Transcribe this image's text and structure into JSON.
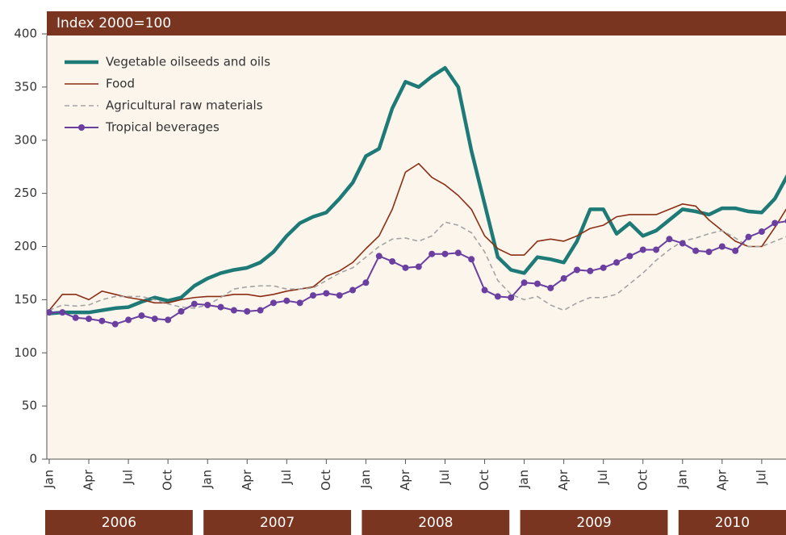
{
  "chart_data": {
    "type": "line",
    "subtitle": "Index 2000=100",
    "categories": [
      "Jan",
      null,
      null,
      "Apr",
      null,
      null,
      "Jul",
      null,
      null,
      "Oct",
      null,
      null,
      "Jan",
      null,
      null,
      "Apr",
      null,
      null,
      "Jul",
      null,
      null,
      "Oct",
      null,
      null,
      "Jan",
      null,
      null,
      "Apr",
      null,
      null,
      "Jul",
      null,
      null,
      "Oct",
      null,
      null,
      "Jan",
      null,
      null,
      "Apr",
      null,
      null,
      "Jul",
      null,
      null,
      "Oct",
      null,
      null,
      "Jan",
      null,
      null,
      "Apr",
      null,
      null,
      "Jul",
      null,
      null
    ],
    "years": [
      "2006",
      "2007",
      "2008",
      "2009",
      "2010"
    ],
    "series": [
      {
        "name": "Vegetable oilseeds and oils",
        "color": "#1d7a77",
        "style": "thick",
        "values": [
          137,
          138,
          138,
          138,
          140,
          142,
          143,
          148,
          152,
          149,
          152,
          163,
          170,
          175,
          178,
          180,
          185,
          195,
          210,
          222,
          228,
          232,
          245,
          260,
          285,
          292,
          330,
          355,
          350,
          360,
          368,
          350,
          290,
          240,
          190,
          178,
          175,
          190,
          188,
          185,
          205,
          235,
          235,
          212,
          222,
          210,
          215,
          225,
          235,
          233,
          230,
          236,
          236,
          233,
          232,
          245,
          268
        ]
      },
      {
        "name": "Food",
        "color": "#8b2e14",
        "style": "solid",
        "values": [
          140,
          155,
          155,
          150,
          158,
          155,
          152,
          150,
          147,
          147,
          150,
          152,
          153,
          153,
          155,
          155,
          153,
          155,
          158,
          160,
          162,
          172,
          177,
          185,
          198,
          210,
          235,
          270,
          278,
          265,
          258,
          248,
          235,
          210,
          198,
          192,
          192,
          205,
          207,
          205,
          210,
          217,
          220,
          228,
          230,
          230,
          230,
          235,
          240,
          238,
          225,
          215,
          205,
          200,
          200,
          218,
          238
        ]
      },
      {
        "name": "Agricultural raw materials",
        "color": "#a3a3a3",
        "style": "dashed",
        "values": [
          140,
          145,
          144,
          145,
          150,
          153,
          153,
          153,
          150,
          146,
          143,
          142,
          145,
          152,
          160,
          162,
          163,
          163,
          160,
          160,
          161,
          168,
          175,
          180,
          190,
          200,
          207,
          208,
          205,
          210,
          223,
          220,
          213,
          195,
          168,
          155,
          150,
          153,
          145,
          140,
          147,
          152,
          152,
          155,
          165,
          175,
          187,
          197,
          205,
          208,
          212,
          215,
          208,
          200,
          200,
          205,
          210
        ]
      },
      {
        "name": "Tropical beverages",
        "color": "#6b3fa0",
        "style": "markers",
        "values": [
          138,
          138,
          133,
          132,
          130,
          127,
          131,
          135,
          132,
          131,
          139,
          146,
          145,
          143,
          140,
          139,
          140,
          147,
          149,
          147,
          154,
          156,
          154,
          159,
          166,
          191,
          186,
          180,
          181,
          193,
          193,
          194,
          188,
          159,
          153,
          152,
          166,
          165,
          161,
          170,
          178,
          177,
          180,
          185,
          191,
          197,
          197,
          207,
          203,
          196,
          195,
          200,
          196,
          209,
          214,
          222,
          224
        ]
      }
    ],
    "ylim": [
      0,
      400
    ],
    "yticks": [
      0,
      50,
      100,
      150,
      200,
      250,
      300,
      350,
      400
    ]
  }
}
